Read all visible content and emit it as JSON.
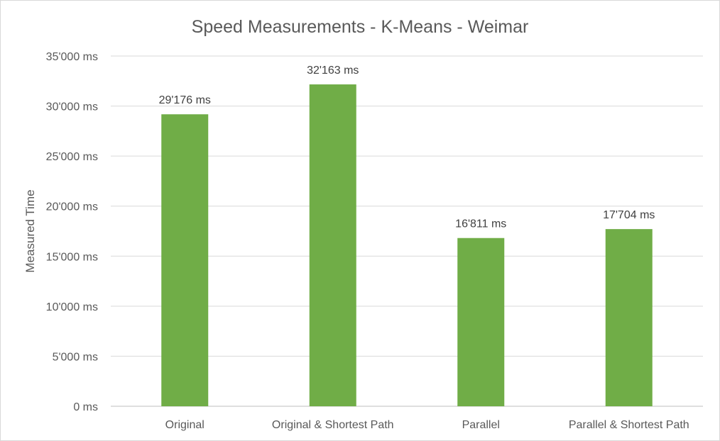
{
  "chart_data": {
    "type": "bar",
    "title": "Speed Measurements - K-Means - Weimar",
    "ylabel": "Measured Time",
    "xlabel": "",
    "categories": [
      "Original",
      "Original & Shortest Path",
      "Parallel",
      "Parallel & Shortest Path"
    ],
    "values": [
      29176,
      32163,
      16811,
      17704
    ],
    "data_labels": [
      "29'176 ms",
      "32'163 ms",
      "16'811 ms",
      "17'704 ms"
    ],
    "ylim": [
      0,
      35000
    ],
    "y_ticks": [
      0,
      5000,
      10000,
      15000,
      20000,
      25000,
      30000,
      35000
    ],
    "y_tick_labels": [
      "0 ms",
      "5'000 ms",
      "10'000 ms",
      "15'000 ms",
      "20'000 ms",
      "25'000 ms",
      "30'000 ms",
      "35'000 ms"
    ],
    "grid": true,
    "legend": "none",
    "bar_color": "#70ad47"
  }
}
